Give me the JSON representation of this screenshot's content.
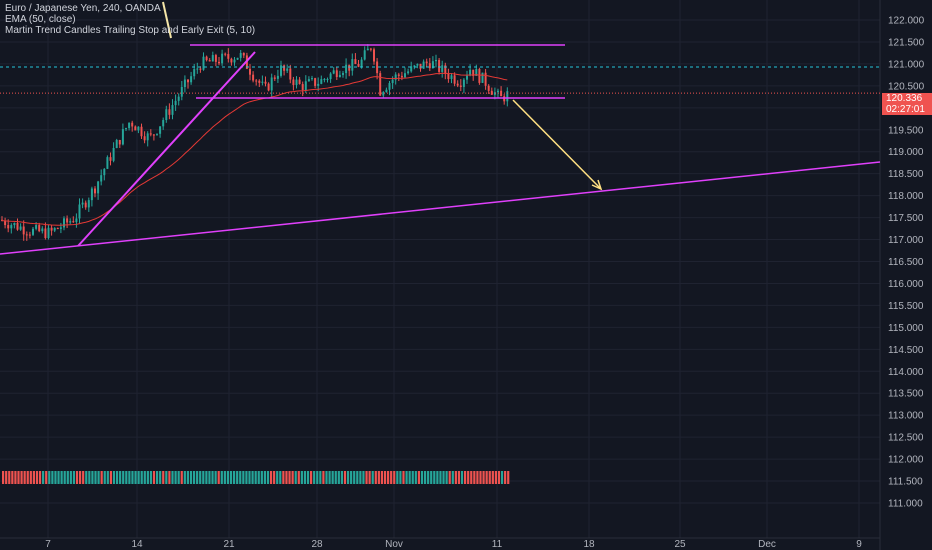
{
  "legend": {
    "symbol": "Euro / Japanese Yen, 240, OANDA",
    "ema": "EMA (50, close)",
    "indicator": "Martin Trend Candles Trailing Stop and Early Exit (5, 10)"
  },
  "price_tags": {
    "last_price": "120.336",
    "countdown": "02:27:01"
  },
  "colors": {
    "background": "#131722",
    "up": "#26a69a",
    "down": "#ef5350",
    "ema": "#e53935",
    "trendline": "#e040fb",
    "arrow": "#ffe082",
    "hline_dashed": "#26c6da"
  },
  "chart_data": {
    "type": "candlestick",
    "ylim": [
      110.9,
      122.35
    ],
    "y_ticks": [
      "122.000",
      "121.500",
      "121.000",
      "120.500",
      "120.000",
      "119.500",
      "119.000",
      "118.500",
      "118.000",
      "117.500",
      "117.000",
      "116.500",
      "116.000",
      "115.500",
      "115.000",
      "114.500",
      "114.000",
      "113.500",
      "113.000",
      "112.500",
      "112.000",
      "111.500",
      "111.000"
    ],
    "x_ticks": [
      "7",
      "14",
      "21",
      "28",
      "Nov",
      "11",
      "18",
      "25",
      "Dec",
      "9"
    ],
    "dashed_level": 120.93,
    "last_price": 120.336,
    "ema_period": 50,
    "notes_visible": "sawtooth candles; EMA curve; trendlines; range rectangle; projected arrow"
  }
}
